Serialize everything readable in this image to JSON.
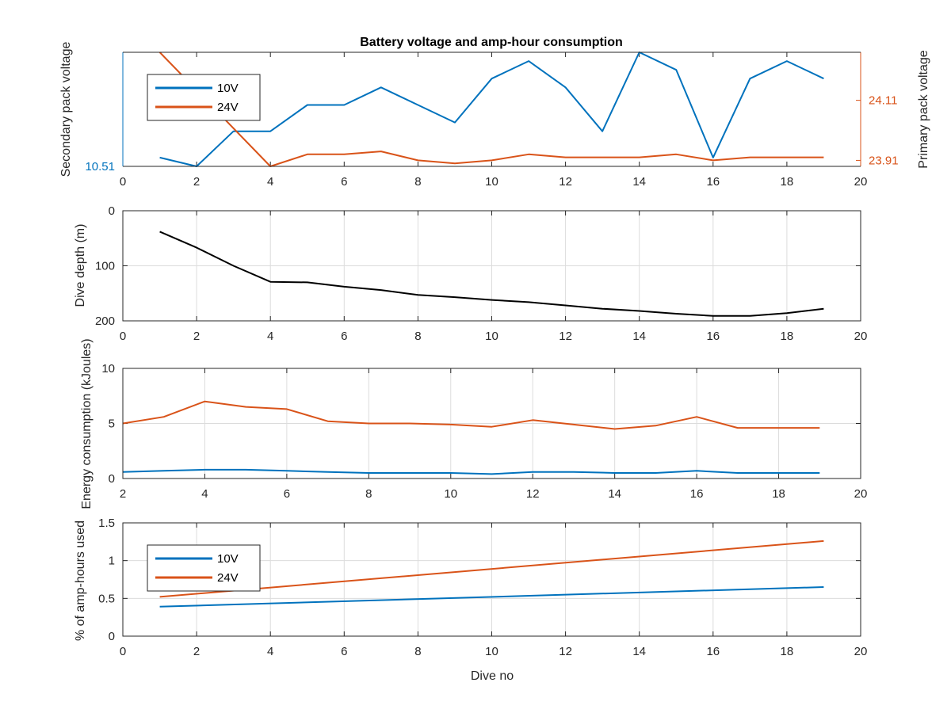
{
  "colors": {
    "blue": "#0072BD",
    "orange": "#D95319",
    "black": "#000000",
    "grid": "#dcdcdc",
    "axis": "#262626"
  },
  "chart_data": [
    {
      "type": "line",
      "title": "Battery voltage and amp-hour consumption",
      "xlabel": "",
      "ylabel": "Secondary pack voltage",
      "ylabel_right": "Primary pack voltage",
      "xlim": [
        0,
        20
      ],
      "xticks": [
        0,
        2,
        4,
        6,
        8,
        10,
        12,
        14,
        16,
        18,
        20
      ],
      "ylim_left": [
        10.51,
        10.64
      ],
      "yticks_left": [
        10.51
      ],
      "ylim_right": [
        23.89,
        24.27
      ],
      "yticks_right": [
        23.91,
        24.11
      ],
      "grid": false,
      "legend": {
        "position": "top-left",
        "entries": [
          "10V",
          "24V"
        ]
      },
      "series": [
        {
          "name": "10V",
          "axis": "left",
          "color": "#0072BD",
          "x": [
            1,
            2,
            3,
            4,
            5,
            6,
            7,
            8,
            9,
            10,
            11,
            12,
            13,
            14,
            15,
            16,
            17,
            18,
            19
          ],
          "values": [
            10.52,
            10.51,
            10.55,
            10.55,
            10.58,
            10.58,
            10.6,
            10.58,
            10.56,
            10.61,
            10.63,
            10.6,
            10.55,
            10.64,
            10.62,
            10.52,
            10.61,
            10.63,
            10.61
          ]
        },
        {
          "name": "24V",
          "axis": "right",
          "color": "#D95319",
          "x": [
            1,
            4,
            5,
            6,
            7,
            8,
            9,
            10,
            11,
            12,
            13,
            14,
            15,
            16,
            17,
            18,
            19
          ],
          "values": [
            24.27,
            23.89,
            23.93,
            23.93,
            23.94,
            23.91,
            23.9,
            23.91,
            23.93,
            23.92,
            23.92,
            23.92,
            23.93,
            23.91,
            23.92,
            23.92,
            23.92
          ]
        }
      ]
    },
    {
      "type": "line",
      "ylabel": "Dive depth (m)",
      "xlim": [
        0,
        20
      ],
      "xticks": [
        0,
        2,
        4,
        6,
        8,
        10,
        12,
        14,
        16,
        18,
        20
      ],
      "ylim": [
        0,
        200
      ],
      "y_reversed": true,
      "yticks": [
        0,
        100,
        200
      ],
      "ytick_labels": [
        "0",
        "100",
        "200"
      ],
      "grid": true,
      "series": [
        {
          "color": "#000000",
          "x": [
            1,
            2,
            3,
            4,
            5,
            6,
            7,
            8,
            9,
            10,
            11,
            12,
            13,
            14,
            15,
            16,
            17,
            18,
            19
          ],
          "values": [
            38,
            67,
            100,
            129,
            130,
            138,
            144,
            153,
            157,
            162,
            166,
            172,
            178,
            182,
            187,
            191,
            191,
            186,
            178
          ]
        }
      ]
    },
    {
      "type": "line",
      "ylabel": "Energy consumption (kJoules)",
      "xlim": [
        2,
        20
      ],
      "xticks": [
        2,
        4,
        6,
        8,
        10,
        12,
        14,
        16,
        18,
        20
      ],
      "ylim": [
        0,
        10
      ],
      "yticks": [
        0,
        5,
        10
      ],
      "grid": true,
      "series": [
        {
          "color": "#D95319",
          "x": [
            2,
            3,
            4,
            5,
            6,
            7,
            8,
            9,
            10,
            11,
            12,
            13,
            14,
            15,
            16,
            17,
            18,
            19
          ],
          "values": [
            5.0,
            5.6,
            7.0,
            6.5,
            6.3,
            5.2,
            5.0,
            5.0,
            4.9,
            4.7,
            5.3,
            4.9,
            4.5,
            4.8,
            5.6,
            4.6,
            4.6,
            4.6
          ]
        },
        {
          "color": "#0072BD",
          "x": [
            2,
            3,
            4,
            5,
            6,
            7,
            8,
            9,
            10,
            11,
            12,
            13,
            14,
            15,
            16,
            17,
            18,
            19
          ],
          "values": [
            0.6,
            0.7,
            0.8,
            0.8,
            0.7,
            0.6,
            0.5,
            0.5,
            0.5,
            0.4,
            0.6,
            0.6,
            0.5,
            0.5,
            0.7,
            0.5,
            0.5,
            0.5
          ]
        }
      ]
    },
    {
      "type": "line",
      "xlabel": "Dive no",
      "ylabel": "% of amp-hours used",
      "xlim": [
        0,
        20
      ],
      "xticks": [
        0,
        2,
        4,
        6,
        8,
        10,
        12,
        14,
        16,
        18,
        20
      ],
      "ylim": [
        0,
        1.5
      ],
      "yticks": [
        0,
        0.5,
        1,
        1.5
      ],
      "grid": true,
      "legend": {
        "position": "bottom-left",
        "entries": [
          "10V",
          "24V"
        ]
      },
      "series": [
        {
          "name": "10V",
          "color": "#0072BD",
          "x": [
            1,
            19
          ],
          "values": [
            0.39,
            0.65
          ]
        },
        {
          "name": "24V",
          "color": "#D95319",
          "x": [
            1,
            19
          ],
          "values": [
            0.52,
            1.26
          ]
        }
      ]
    }
  ]
}
